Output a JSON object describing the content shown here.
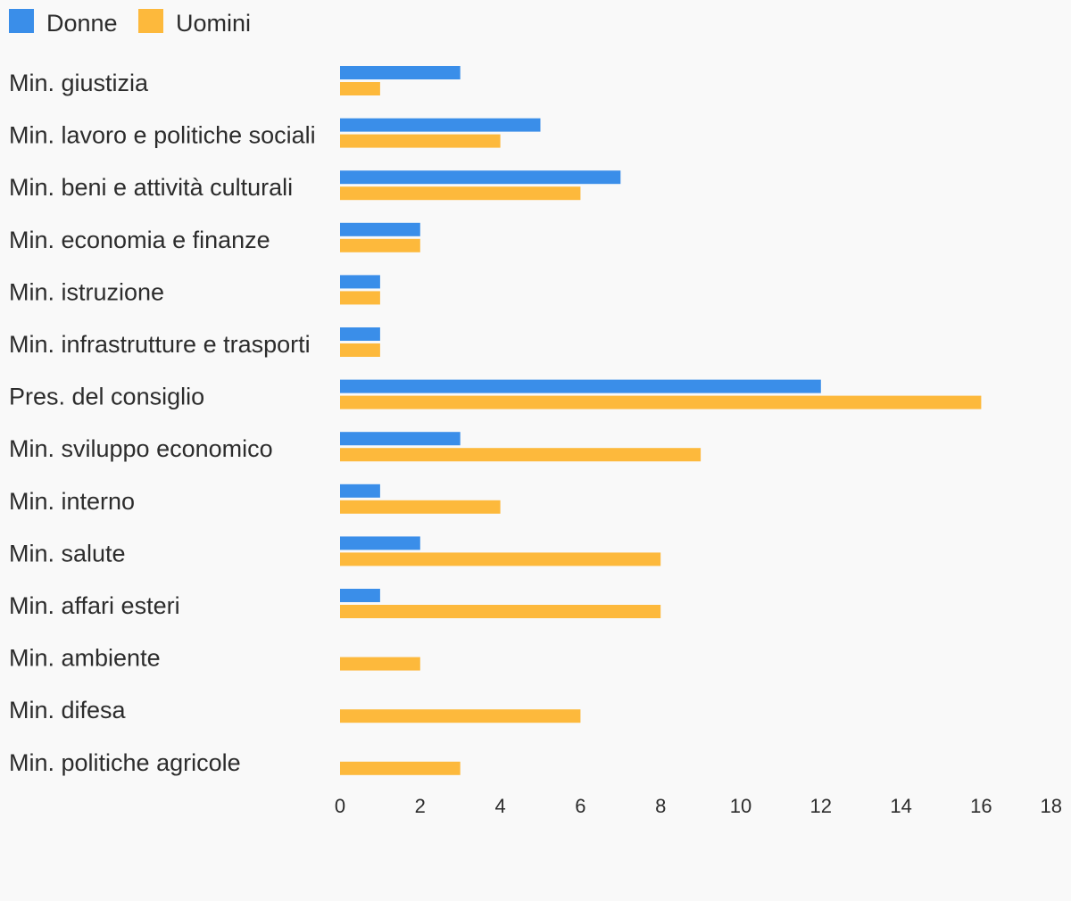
{
  "chart_data": {
    "type": "bar",
    "orientation": "horizontal",
    "categories": [
      "Min. giustizia",
      "Min. lavoro e politiche sociali",
      "Min. beni e attività culturali",
      "Min. economia e finanze",
      "Min. istruzione",
      "Min. infrastrutture e trasporti",
      "Pres. del consiglio",
      "Min. sviluppo economico",
      "Min. interno",
      "Min. salute",
      "Min. affari esteri",
      "Min. ambiente",
      "Min. difesa",
      "Min. politiche agricole"
    ],
    "series": [
      {
        "name": "Donne",
        "color": "#3a8ee9",
        "values": [
          3,
          5,
          7,
          2,
          1,
          1,
          12,
          3,
          1,
          2,
          1,
          0,
          0,
          0
        ]
      },
      {
        "name": "Uomini",
        "color": "#fdb93c",
        "values": [
          1,
          4,
          6,
          2,
          1,
          1,
          16,
          9,
          4,
          8,
          8,
          2,
          6,
          3
        ]
      }
    ],
    "xlim": [
      0,
      18
    ],
    "xticks": [
      0,
      2,
      4,
      6,
      8,
      10,
      12,
      14,
      16,
      18
    ],
    "legend_position": "top-left",
    "grid": false
  }
}
